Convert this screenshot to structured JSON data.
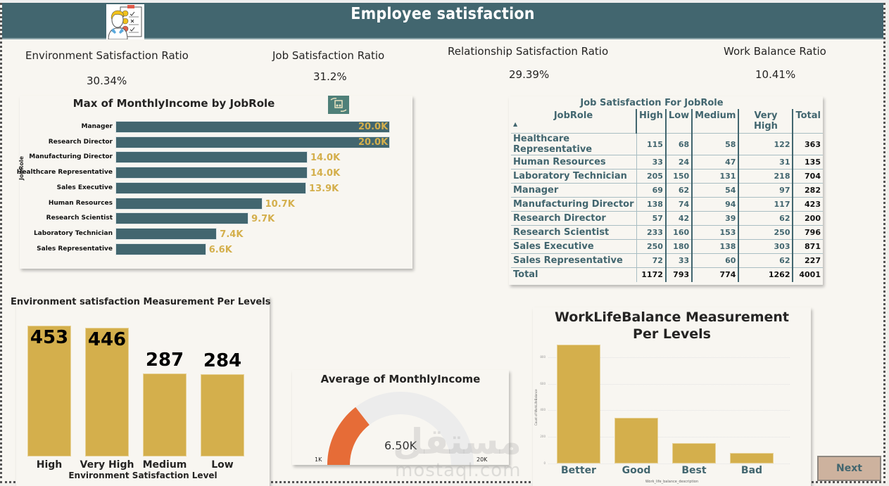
{
  "header": {
    "title": "Employee satisfaction",
    "logo_icon": "satisfaction-survey-icon"
  },
  "kpis": [
    {
      "label": "Environment Satisfaction Ratio",
      "value": "30.34%"
    },
    {
      "label": "Job Satisfaction Ratio",
      "value": "31.2%"
    },
    {
      "label": "Relationship Satisfaction Ratio",
      "value": "29.39%"
    },
    {
      "label": "Work Balance Ratio",
      "value": "10.41%"
    }
  ],
  "chart_data": [
    {
      "type": "bar",
      "orientation": "horizontal",
      "title": "Max of MonthlyIncome by JobRole",
      "ylabel": "JobRole",
      "xlabel": "",
      "categories": [
        "Manager",
        "Research Director",
        "Manufacturing Director",
        "Healthcare Representative",
        "Sales Executive",
        "Human Resources",
        "Research Scientist",
        "Laboratory Technician",
        "Sales Representative"
      ],
      "values": [
        20000,
        20000,
        14000,
        14000,
        13900,
        10700,
        9700,
        7400,
        6600
      ],
      "data_labels": [
        "20.0K",
        "20.0K",
        "14.0K",
        "14.0K",
        "13.9K",
        "10.7K",
        "9.7K",
        "7.4K",
        "6.6K"
      ],
      "xlim": [
        0,
        20000
      ],
      "colors": {
        "bar": "#42666f",
        "label": "#d4af4c"
      }
    },
    {
      "type": "table",
      "title": "Job Satisfaction For JobRole",
      "columns": [
        "JobRole",
        "High",
        "Low",
        "Medium",
        "Very High",
        "Total"
      ],
      "sort_indicator": "▲",
      "rows": [
        [
          "Healthcare Representative",
          115,
          68,
          58,
          122,
          363
        ],
        [
          "Human Resources",
          33,
          24,
          47,
          31,
          135
        ],
        [
          "Laboratory Technician",
          205,
          150,
          131,
          218,
          704
        ],
        [
          "Manager",
          69,
          62,
          54,
          97,
          282
        ],
        [
          "Manufacturing Director",
          138,
          74,
          94,
          117,
          423
        ],
        [
          "Research Director",
          57,
          42,
          39,
          62,
          200
        ],
        [
          "Research Scientist",
          233,
          160,
          153,
          250,
          796
        ],
        [
          "Sales Executive",
          250,
          180,
          138,
          303,
          871
        ],
        [
          "Sales Representative",
          72,
          33,
          60,
          62,
          227
        ]
      ],
      "total": [
        "Total",
        1172,
        793,
        774,
        1262,
        4001
      ]
    },
    {
      "type": "bar",
      "title": "Environment satisfaction Measurement Per Levels",
      "xlabel": "Environment Satisfaction Level",
      "ylabel": "",
      "categories": [
        "High",
        "Very High",
        "Medium",
        "Low"
      ],
      "values": [
        453,
        446,
        287,
        284
      ],
      "ylim": [
        0,
        453
      ],
      "colors": {
        "bar": "#d4af4c"
      }
    },
    {
      "type": "gauge",
      "title": "Average of MonthlyIncome",
      "value": 6500,
      "value_label": "6.50K",
      "min": 1000,
      "min_label": "1K",
      "max": 20000,
      "max_label": "20K",
      "colors": {
        "fill": "#e66c37",
        "track": "#ececec"
      }
    },
    {
      "type": "bar",
      "title": "WorkLifeBalance Measurement Per Levels",
      "xlabel": "Work_life_balance_description",
      "ylabel": "Count of WorkLifeBalance",
      "categories": [
        "Better",
        "Good",
        "Best",
        "Bad"
      ],
      "values": [
        893,
        344,
        153,
        80
      ],
      "yticks": [
        0,
        200,
        400,
        600,
        800
      ],
      "ylim": [
        0,
        900
      ],
      "grid": true,
      "colors": {
        "bar": "#d4af4c"
      }
    }
  ],
  "watermark": {
    "arabic": "مستقل",
    "latin": "mostaql.com"
  },
  "nav": {
    "next_label": "Next"
  }
}
